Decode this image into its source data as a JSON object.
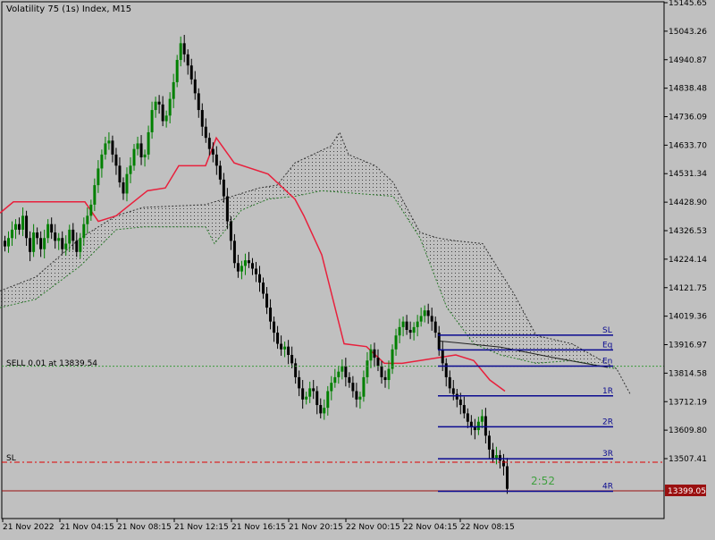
{
  "window": {
    "title": "Volatility 75 (1s) Index, M15"
  },
  "price_axis": {
    "ticks": [
      "15145.65",
      "15043.26",
      "14940.87",
      "14838.48",
      "14736.09",
      "14633.70",
      "14531.34",
      "14428.90",
      "14326.53",
      "14224.14",
      "14121.75",
      "14019.36",
      "13916.97",
      "13814.58",
      "13712.19",
      "13609.80",
      "13507.41"
    ],
    "current_price": "13399.05"
  },
  "time_axis": {
    "ticks": [
      "21 Nov 2022",
      "21 Nov 04:15",
      "21 Nov 08:15",
      "21 Nov 12:15",
      "21 Nov 16:15",
      "21 Nov 20:15",
      "22 Nov 00:15",
      "22 Nov 04:15",
      "22 Nov 08:15"
    ]
  },
  "trade": {
    "sell_label": "SELL 0.01 at 13839.54",
    "sl_label": "SL",
    "timer": "2:52",
    "levels": [
      {
        "label": "SL",
        "price": 13951
      },
      {
        "label": "Eq",
        "price": 13898
      },
      {
        "label": "En",
        "price": 13840
      },
      {
        "label": "1R",
        "price": 13733
      },
      {
        "label": "2R",
        "price": 13622
      },
      {
        "label": "3R",
        "price": 13507
      },
      {
        "label": "4R",
        "price": 13390
      }
    ]
  },
  "colors": {
    "background": "#c0c0c0",
    "bull": "#008000",
    "bear": "#000000",
    "kijun": "#e8203c",
    "level_line": "#0a0a90",
    "sl_line": "#e00000",
    "current_price_line": "#9a1010",
    "timer": "#40a040"
  },
  "chart_data": {
    "type": "candlestick",
    "title": "Volatility 75 (1s) Index, M15",
    "ylim": [
      13320,
      15180
    ],
    "candles_close": [
      14270,
      14300,
      14330,
      14350,
      14330,
      14380,
      14300,
      14250,
      14320,
      14300,
      14260,
      14300,
      14350,
      14320,
      14290,
      14300,
      14260,
      14280,
      14330,
      14290,
      14250,
      14300,
      14350,
      14380,
      14420,
      14490,
      14550,
      14600,
      14640,
      14650,
      14600,
      14560,
      14500,
      14460,
      14530,
      14560,
      14620,
      14640,
      14590,
      14600,
      14680,
      14760,
      14790,
      14780,
      14720,
      14740,
      14800,
      14860,
      14940,
      15000,
      14960,
      14920,
      14870,
      14820,
      14760,
      14700,
      14660,
      14620,
      14600,
      14560,
      14510,
      14450,
      14360,
      14290,
      14210,
      14180,
      14200,
      14220,
      14210,
      14190,
      14170,
      14140,
      14100,
      14050,
      14000,
      13960,
      13920,
      13900,
      13910,
      13880,
      13850,
      13800,
      13760,
      13720,
      13730,
      13760,
      13750,
      13700,
      13670,
      13690,
      13750,
      13780,
      13800,
      13820,
      13840,
      13800,
      13780,
      13750,
      13720,
      13730,
      13800,
      13860,
      13900,
      13870,
      13840,
      13800,
      13790,
      13830,
      13900,
      13950,
      13980,
      14000,
      13970,
      13960,
      13980,
      14000,
      14020,
      14040,
      14020,
      14000,
      13960,
      13900,
      13850,
      13800,
      13760,
      13740,
      13720,
      13700,
      13670,
      13640,
      13620,
      13610,
      13640,
      13660,
      13590,
      13540,
      13510,
      13520,
      13500,
      13480,
      13399
    ],
    "kijun": [
      [
        0,
        14390
      ],
      [
        15,
        14430
      ],
      [
        95,
        14430
      ],
      [
        110,
        14360
      ],
      [
        130,
        14380
      ],
      [
        165,
        14470
      ],
      [
        185,
        14480
      ],
      [
        200,
        14560
      ],
      [
        230,
        14560
      ],
      [
        242,
        14660
      ],
      [
        262,
        14570
      ],
      [
        300,
        14530
      ],
      [
        330,
        14440
      ],
      [
        340,
        14380
      ],
      [
        360,
        14240
      ],
      [
        385,
        13920
      ],
      [
        410,
        13910
      ],
      [
        430,
        13850
      ],
      [
        450,
        13850
      ],
      [
        470,
        13860
      ],
      [
        490,
        13870
      ],
      [
        510,
        13880
      ],
      [
        530,
        13860
      ],
      [
        548,
        13790
      ],
      [
        565,
        13750
      ]
    ],
    "cloud_upper": [
      [
        0,
        14110
      ],
      [
        40,
        14160
      ],
      [
        90,
        14300
      ],
      [
        130,
        14380
      ],
      [
        160,
        14410
      ],
      [
        230,
        14420
      ],
      [
        290,
        14480
      ],
      [
        310,
        14490
      ],
      [
        330,
        14570
      ],
      [
        370,
        14630
      ],
      [
        380,
        14680
      ],
      [
        390,
        14600
      ],
      [
        420,
        14560
      ],
      [
        440,
        14500
      ],
      [
        470,
        14320
      ],
      [
        490,
        14300
      ],
      [
        510,
        14290
      ],
      [
        540,
        14280
      ],
      [
        575,
        14100
      ],
      [
        600,
        13950
      ],
      [
        640,
        13920
      ],
      [
        690,
        13830
      ],
      [
        705,
        13740
      ]
    ],
    "cloud_lower": [
      [
        0,
        14050
      ],
      [
        40,
        14080
      ],
      [
        90,
        14200
      ],
      [
        130,
        14330
      ],
      [
        160,
        14340
      ],
      [
        230,
        14340
      ],
      [
        240,
        14280
      ],
      [
        270,
        14400
      ],
      [
        300,
        14440
      ],
      [
        330,
        14450
      ],
      [
        360,
        14470
      ],
      [
        440,
        14450
      ],
      [
        470,
        14300
      ],
      [
        500,
        14050
      ],
      [
        530,
        13920
      ],
      [
        560,
        13880
      ],
      [
        600,
        13850
      ],
      [
        640,
        13860
      ],
      [
        690,
        13830
      ]
    ],
    "descending_line": [
      [
        492,
        13930
      ],
      [
        560,
        13908
      ],
      [
        620,
        13870
      ],
      [
        680,
        13835
      ]
    ]
  }
}
